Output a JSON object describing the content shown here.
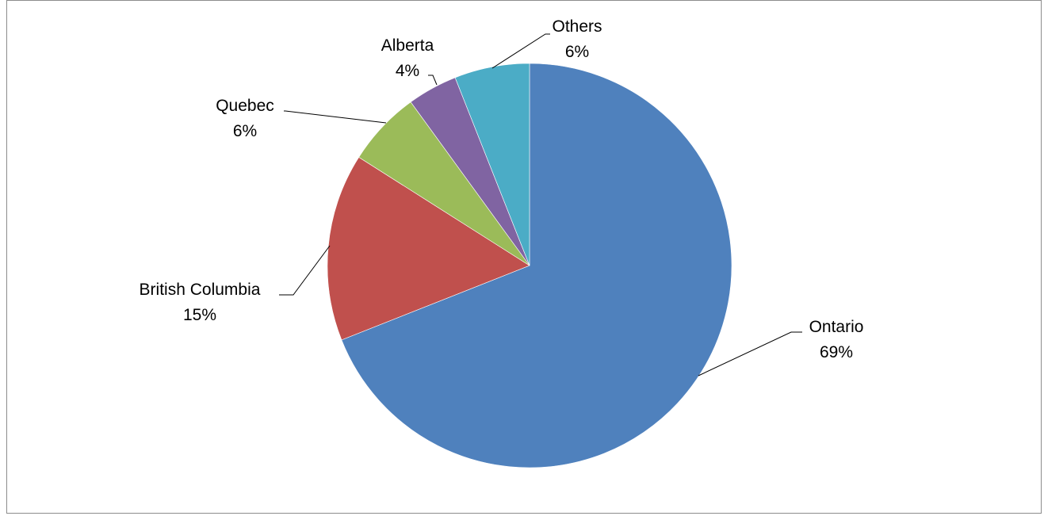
{
  "chart_data": {
    "type": "pie",
    "title": "",
    "start_angle_deg": 0,
    "direction": "clockwise",
    "slices": [
      {
        "label": "Ontario",
        "percent_label": "69%",
        "value": 69,
        "color": "#4F81BD"
      },
      {
        "label": "British Columbia",
        "percent_label": "15%",
        "value": 15,
        "color": "#C0504D"
      },
      {
        "label": "Quebec",
        "percent_label": "6%",
        "value": 6,
        "color": "#9BBB59"
      },
      {
        "label": "Alberta",
        "percent_label": "4%",
        "value": 4,
        "color": "#8064A2"
      },
      {
        "label": "Others",
        "percent_label": "6%",
        "value": 6,
        "color": "#4BACC6"
      }
    ]
  }
}
